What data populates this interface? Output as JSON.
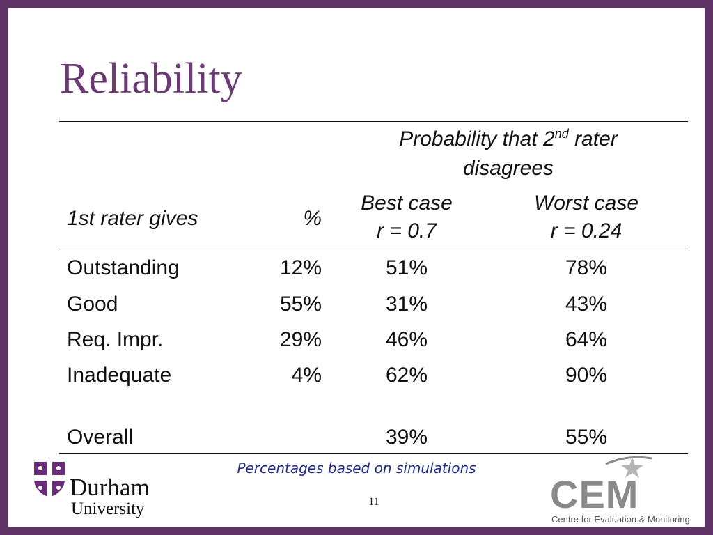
{
  "slide": {
    "title": "Reliability",
    "table": {
      "group_header": {
        "line1_prefix": "Probability that 2",
        "line1_sup": "nd",
        "line1_suffix": " rater",
        "line2": "disagrees"
      },
      "headers": {
        "first": "1st rater gives",
        "pct": "%",
        "best_line1": "Best case",
        "best_line2": "r = 0.7",
        "worst_line1": "Worst case",
        "worst_line2": "r = 0.24"
      },
      "rows": [
        {
          "label": "Outstanding",
          "pct": "12%",
          "best": "51%",
          "worst": "78%"
        },
        {
          "label": "Good",
          "pct": "55%",
          "best": "31%",
          "worst": "43%"
        },
        {
          "label": "Req. Impr.",
          "pct": "29%",
          "best": "46%",
          "worst": "64%"
        },
        {
          "label": "Inadequate",
          "pct": "4%",
          "best": "62%",
          "worst": "90%"
        }
      ],
      "overall": {
        "label": "Overall",
        "pct": "",
        "best": "39%",
        "worst": "55%"
      }
    },
    "footnote": "Percentages based on simulations",
    "page_number": "11",
    "durham_logo": {
      "name": "Durham",
      "subtitle": "University"
    },
    "cem_logo": {
      "name": "CEM",
      "subtitle": "Centre for Evaluation & Monitoring"
    },
    "colors": {
      "frame": "#5e3366",
      "title": "#6a3a73",
      "footnote": "#1f2a8a"
    }
  }
}
